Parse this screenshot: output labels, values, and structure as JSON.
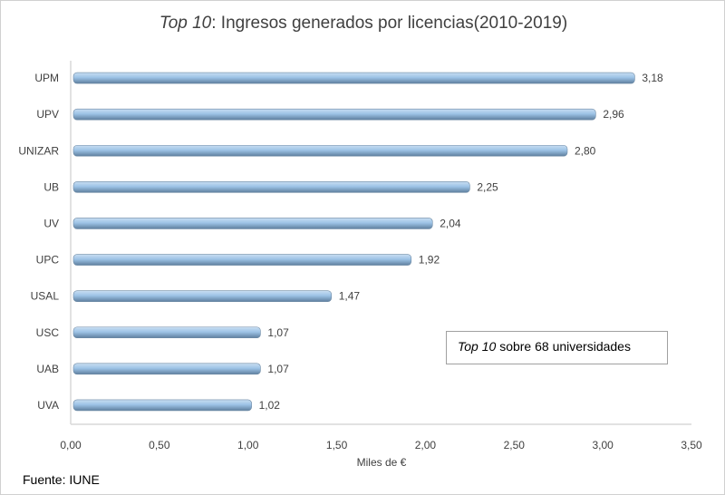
{
  "title": {
    "italic_part": "Top 10",
    "rest": ": Ingresos generados por licencias(2010-2019)"
  },
  "source": "Fuente: IUNE",
  "note": {
    "italic_part": "Top 10",
    "rest": " sobre 68 universidades"
  },
  "chart_data": {
    "type": "bar",
    "orientation": "horizontal",
    "categories": [
      "UPM",
      "UPV",
      "UNIZAR",
      "UB",
      "UV",
      "UPC",
      "USAL",
      "USC",
      "UAB",
      "UVA"
    ],
    "values": [
      3.18,
      2.96,
      2.8,
      2.25,
      2.04,
      1.92,
      1.47,
      1.07,
      1.07,
      1.02
    ],
    "data_labels": [
      "3,18",
      "2,96",
      "2,80",
      "2,25",
      "2,04",
      "1,92",
      "1,47",
      "1,07",
      "1,07",
      "1,02"
    ],
    "xlabel": "Miles de €",
    "ylabel": "",
    "xlim": [
      0,
      3.5
    ],
    "xticks": [
      "0,00",
      "0,50",
      "1,00",
      "1,50",
      "2,00",
      "2,50",
      "3,00",
      "3,50"
    ],
    "grid": false,
    "bar_color": "#9dc3e6"
  }
}
